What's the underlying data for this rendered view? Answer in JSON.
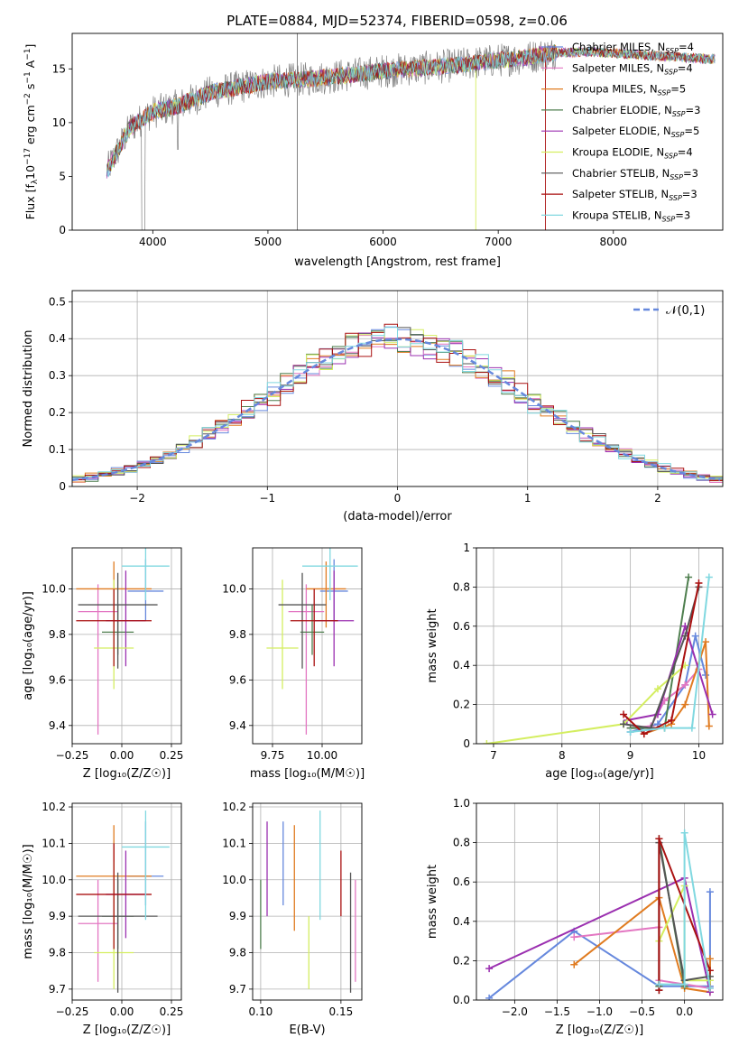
{
  "figure_title": "PLATE=0884, MJD=52374, FIBERID=0598, z=0.06",
  "series": [
    {
      "name": "Chabrier MILES",
      "nssp": "4",
      "color": "#6688dd"
    },
    {
      "name": "Salpeter MILES",
      "nssp": "4",
      "color": "#e377c2"
    },
    {
      "name": "Kroupa MILES",
      "nssp": "5",
      "color": "#e07b20"
    },
    {
      "name": "Chabrier ELODIE",
      "nssp": "3",
      "color": "#4f7f4f"
    },
    {
      "name": "Salpeter ELODIE",
      "nssp": "5",
      "color": "#9b30b0"
    },
    {
      "name": "Kroupa ELODIE",
      "nssp": "4",
      "color": "#d4ee60"
    },
    {
      "name": "Chabrier STELIB",
      "nssp": "3",
      "color": "#555555"
    },
    {
      "name": "Salpeter STELIB",
      "nssp": "3",
      "color": "#aa1111"
    },
    {
      "name": "Kroupa STELIB",
      "nssp": "3",
      "color": "#80d8e0"
    }
  ],
  "chart_data": [
    {
      "id": "spectrum",
      "type": "line",
      "xlabel": "wavelength [Angstrom, rest frame]",
      "ylabel_parts": {
        "pre": "Flux [f",
        "sub": "λ",
        "mid": "10",
        "sup1": "−17",
        "post": " erg cm",
        "sup2": "−2",
        "post2": " s",
        "sup3": "−1",
        "post3": " A",
        "sup4": "−1",
        "close": "]"
      },
      "xlim": [
        3300,
        8950
      ],
      "ylim": [
        0,
        18.3
      ],
      "xticks": [
        4000,
        5000,
        6000,
        7000,
        8000
      ],
      "yticks": [
        0,
        5,
        10,
        15
      ],
      "continuum_x": [
        3600,
        3800,
        4000,
        4200,
        4500,
        5000,
        5500,
        6000,
        6500,
        7000,
        7200,
        7500
      ],
      "continuum_y": [
        5.5,
        9.5,
        11.0,
        11.5,
        12.8,
        13.8,
        14.2,
        14.8,
        15.2,
        15.8,
        16.0,
        16.5
      ],
      "models_x": [
        7500,
        7800,
        8100,
        8400,
        8700,
        8850
      ],
      "models_y": [
        16.5,
        16.6,
        16.4,
        16.2,
        16.0,
        15.9
      ],
      "legend_position": "upper-right"
    },
    {
      "id": "residuals",
      "type": "histogram",
      "xlabel": "(data-model)/error",
      "ylabel": "Normed distribution",
      "xlim": [
        -2.5,
        2.5
      ],
      "ylim": [
        0,
        0.53
      ],
      "xticks": [
        -2,
        -1,
        0,
        1,
        2
      ],
      "yticks": [
        0.0,
        0.1,
        0.2,
        0.3,
        0.4,
        0.5
      ],
      "bin_width": 0.1,
      "reference_label": "𝒩(0,1)",
      "reference_color": "#6688dd",
      "legend_position": "upper-right"
    },
    {
      "id": "age_vs_z",
      "type": "errorbar",
      "xlabel": "Z [log₁₀(Z/Z☉)]",
      "ylabel": "age  [log₁₀(age/yr)]",
      "xlim": [
        -0.25,
        0.3
      ],
      "ylim": [
        9.32,
        10.18
      ],
      "xticks": [
        -0.25,
        0.0,
        0.25
      ],
      "yticks": [
        9.4,
        9.6,
        9.8,
        10.0
      ],
      "points": [
        {
          "s": 0,
          "x": 0.12,
          "y": 9.99,
          "xerr": 0.09,
          "yerr_lo": 0.13,
          "yerr_hi": 0.14
        },
        {
          "s": 1,
          "x": -0.12,
          "y": 9.9,
          "xerr": 0.1,
          "yerr_lo": 0.54,
          "yerr_hi": 0.12
        },
        {
          "s": 2,
          "x": -0.04,
          "y": 10.0,
          "xerr": 0.19,
          "yerr_lo": 0.17,
          "yerr_hi": 0.12
        },
        {
          "s": 3,
          "x": -0.02,
          "y": 9.81,
          "xerr": 0.08,
          "yerr_lo": 0.1,
          "yerr_hi": 0.12
        },
        {
          "s": 4,
          "x": 0.02,
          "y": 9.86,
          "xerr": 0.1,
          "yerr_lo": 0.2,
          "yerr_hi": 0.22
        },
        {
          "s": 5,
          "x": -0.04,
          "y": 9.74,
          "xerr": 0.1,
          "yerr_lo": 0.18,
          "yerr_hi": 0.3
        },
        {
          "s": 6,
          "x": -0.02,
          "y": 9.93,
          "xerr": 0.2,
          "yerr_lo": 0.28,
          "yerr_hi": 0.14
        },
        {
          "s": 7,
          "x": -0.04,
          "y": 9.86,
          "xerr": 0.19,
          "yerr_lo": 0.2,
          "yerr_hi": 0.14
        },
        {
          "s": 8,
          "x": 0.12,
          "y": 10.1,
          "xerr": 0.12,
          "yerr_lo": 0.15,
          "yerr_hi": 0.12
        }
      ]
    },
    {
      "id": "age_vs_mass",
      "type": "errorbar",
      "xlabel": "mass [log₁₀(M/M☉)]",
      "ylabel": "",
      "xlim": [
        9.65,
        10.2
      ],
      "ylim": [
        9.32,
        10.18
      ],
      "xticks": [
        9.75,
        10.0
      ],
      "yticks": [
        9.4,
        9.6,
        9.8,
        10.0
      ],
      "points": [
        {
          "s": 0,
          "x": 10.06,
          "y": 9.99,
          "xerr": 0.07,
          "yerr_lo": 0.13,
          "yerr_hi": 0.14
        },
        {
          "s": 1,
          "x": 9.92,
          "y": 9.9,
          "xerr": 0.09,
          "yerr_lo": 0.54,
          "yerr_hi": 0.12
        },
        {
          "s": 2,
          "x": 10.02,
          "y": 10.0,
          "xerr": 0.1,
          "yerr_lo": 0.17,
          "yerr_hi": 0.12
        },
        {
          "s": 3,
          "x": 9.95,
          "y": 9.81,
          "xerr": 0.06,
          "yerr_lo": 0.1,
          "yerr_hi": 0.12
        },
        {
          "s": 4,
          "x": 10.06,
          "y": 9.86,
          "xerr": 0.1,
          "yerr_lo": 0.2,
          "yerr_hi": 0.22
        },
        {
          "s": 5,
          "x": 9.8,
          "y": 9.74,
          "xerr": 0.08,
          "yerr_lo": 0.18,
          "yerr_hi": 0.3
        },
        {
          "s": 6,
          "x": 9.9,
          "y": 9.93,
          "xerr": 0.12,
          "yerr_lo": 0.28,
          "yerr_hi": 0.14
        },
        {
          "s": 7,
          "x": 9.96,
          "y": 9.86,
          "xerr": 0.12,
          "yerr_lo": 0.2,
          "yerr_hi": 0.14
        },
        {
          "s": 8,
          "x": 10.04,
          "y": 10.1,
          "xerr": 0.14,
          "yerr_lo": 0.15,
          "yerr_hi": 0.12
        }
      ]
    },
    {
      "id": "weight_vs_age",
      "type": "line",
      "xlabel": "age  [log₁₀(age/yr)]",
      "ylabel": "mass weight",
      "xlim": [
        6.75,
        10.35
      ],
      "ylim": [
        0,
        1.0
      ],
      "xticks": [
        7,
        8,
        9,
        10
      ],
      "yticks": [
        0.0,
        0.2,
        0.4,
        0.6,
        0.8,
        1.0
      ],
      "lines": [
        {
          "s": 0,
          "x": [
            9.0,
            9.4,
            9.8,
            9.95,
            10.1
          ],
          "y": [
            0.06,
            0.1,
            0.3,
            0.55,
            0.35
          ]
        },
        {
          "s": 1,
          "x": [
            9.0,
            9.3,
            9.5,
            9.8,
            10.0
          ],
          "y": [
            0.08,
            0.09,
            0.22,
            0.3,
            0.38
          ]
        },
        {
          "s": 2,
          "x": [
            9.2,
            9.6,
            9.8,
            10.1,
            10.15
          ],
          "y": [
            0.05,
            0.1,
            0.2,
            0.52,
            0.09
          ]
        },
        {
          "s": 3,
          "x": [
            9.0,
            9.5,
            9.85
          ],
          "y": [
            0.08,
            0.08,
            0.85
          ]
        },
        {
          "s": 4,
          "x": [
            8.95,
            9.4,
            9.8,
            10.2
          ],
          "y": [
            0.12,
            0.15,
            0.6,
            0.15
          ]
        },
        {
          "s": 5,
          "x": [
            6.9,
            8.9,
            9.4,
            9.8
          ],
          "y": [
            0.0,
            0.1,
            0.28,
            0.4
          ]
        },
        {
          "s": 6,
          "x": [
            8.9,
            9.3,
            9.8,
            10.0
          ],
          "y": [
            0.1,
            0.08,
            0.55,
            0.8
          ]
        },
        {
          "s": 7,
          "x": [
            8.9,
            9.2,
            9.6,
            10.0
          ],
          "y": [
            0.15,
            0.05,
            0.12,
            0.82
          ]
        },
        {
          "s": 8,
          "x": [
            9.0,
            9.5,
            9.9,
            10.15
          ],
          "y": [
            0.06,
            0.08,
            0.08,
            0.85
          ]
        }
      ]
    },
    {
      "id": "mass_vs_z",
      "type": "errorbar",
      "xlabel": "Z [log₁₀(Z/Z☉)]",
      "ylabel": "mass [log₁₀(M/M☉)]",
      "xlim": [
        -0.25,
        0.3
      ],
      "ylim": [
        9.67,
        10.21
      ],
      "xticks": [
        -0.25,
        0.0,
        0.25
      ],
      "yticks": [
        9.7,
        9.8,
        9.9,
        10.0,
        10.1,
        10.2
      ],
      "points": [
        {
          "s": 0,
          "x": 0.12,
          "y": 10.01,
          "xerr": 0.09,
          "yerr_lo": 0.08,
          "yerr_hi": 0.15
        },
        {
          "s": 1,
          "x": -0.12,
          "y": 9.88,
          "xerr": 0.1,
          "yerr_lo": 0.16,
          "yerr_hi": 0.12
        },
        {
          "s": 2,
          "x": -0.04,
          "y": 10.01,
          "xerr": 0.19,
          "yerr_lo": 0.15,
          "yerr_hi": 0.14
        },
        {
          "s": 3,
          "x": -0.02,
          "y": 9.9,
          "xerr": 0.08,
          "yerr_lo": 0.09,
          "yerr_hi": 0.1
        },
        {
          "s": 4,
          "x": 0.02,
          "y": 9.96,
          "xerr": 0.1,
          "yerr_lo": 0.12,
          "yerr_hi": 0.12
        },
        {
          "s": 5,
          "x": -0.04,
          "y": 9.8,
          "xerr": 0.1,
          "yerr_lo": 0.1,
          "yerr_hi": 0.25
        },
        {
          "s": 6,
          "x": -0.02,
          "y": 9.9,
          "xerr": 0.2,
          "yerr_lo": 0.21,
          "yerr_hi": 0.12
        },
        {
          "s": 7,
          "x": -0.04,
          "y": 9.96,
          "xerr": 0.19,
          "yerr_lo": 0.15,
          "yerr_hi": 0.14
        },
        {
          "s": 8,
          "x": 0.12,
          "y": 10.09,
          "xerr": 0.12,
          "yerr_lo": 0.2,
          "yerr_hi": 0.1
        }
      ]
    },
    {
      "id": "mass_vs_ebv",
      "type": "errorbar",
      "xlabel": "E(B-V)",
      "ylabel": "",
      "xlim": [
        0.095,
        0.163
      ],
      "ylim": [
        9.67,
        10.21
      ],
      "xticks": [
        0.1,
        0.15
      ],
      "yticks": [
        9.7,
        9.8,
        9.9,
        10.0,
        10.1,
        10.2
      ],
      "points": [
        {
          "s": 0,
          "x": 0.114,
          "y": 10.01,
          "xerr": 0,
          "yerr_lo": 0.08,
          "yerr_hi": 0.15
        },
        {
          "s": 1,
          "x": 0.159,
          "y": 9.88,
          "xerr": 0,
          "yerr_lo": 0.16,
          "yerr_hi": 0.12
        },
        {
          "s": 2,
          "x": 0.121,
          "y": 10.01,
          "xerr": 0,
          "yerr_lo": 0.15,
          "yerr_hi": 0.14
        },
        {
          "s": 3,
          "x": 0.1,
          "y": 9.9,
          "xerr": 0,
          "yerr_lo": 0.09,
          "yerr_hi": 0.1
        },
        {
          "s": 4,
          "x": 0.104,
          "y": 10.02,
          "xerr": 0,
          "yerr_lo": 0.12,
          "yerr_hi": 0.14
        },
        {
          "s": 5,
          "x": 0.13,
          "y": 9.8,
          "xerr": 0,
          "yerr_lo": 0.1,
          "yerr_hi": 0.1
        },
        {
          "s": 6,
          "x": 0.156,
          "y": 9.86,
          "xerr": 0,
          "yerr_lo": 0.17,
          "yerr_hi": 0.16
        },
        {
          "s": 7,
          "x": 0.15,
          "y": 9.98,
          "xerr": 0,
          "yerr_lo": 0.08,
          "yerr_hi": 0.1
        },
        {
          "s": 8,
          "x": 0.137,
          "y": 10.04,
          "xerr": 0,
          "yerr_lo": 0.15,
          "yerr_hi": 0.15
        }
      ]
    },
    {
      "id": "weight_vs_z",
      "type": "line",
      "xlabel": "Z [log₁₀(Z/Z☉)]",
      "ylabel": "mass weight",
      "xlim": [
        -2.45,
        0.45
      ],
      "ylim": [
        0,
        1.0
      ],
      "xticks": [
        -2.0,
        -1.5,
        -1.0,
        -0.5,
        0.0
      ],
      "yticks": [
        0.0,
        0.2,
        0.4,
        0.6,
        0.8,
        1.0
      ],
      "lines": [
        {
          "s": 0,
          "x": [
            -2.3,
            -1.3,
            -0.3,
            0.3,
            0.3
          ],
          "y": [
            0.01,
            0.35,
            0.07,
            0.07,
            0.55
          ]
        },
        {
          "s": 1,
          "x": [
            -1.3,
            -0.3,
            -0.3,
            0.3
          ],
          "y": [
            0.32,
            0.37,
            0.1,
            0.06
          ]
        },
        {
          "s": 2,
          "x": [
            -1.3,
            -0.3,
            0.0,
            0.3,
            0.3
          ],
          "y": [
            0.18,
            0.52,
            0.06,
            0.04,
            0.21
          ]
        },
        {
          "s": 3,
          "x": [
            -0.3,
            -0.3,
            0.0
          ],
          "y": [
            0.07,
            0.82,
            0.07
          ]
        },
        {
          "s": 4,
          "x": [
            -2.3,
            0.0,
            0.3
          ],
          "y": [
            0.16,
            0.62,
            0.04
          ]
        },
        {
          "s": 5,
          "x": [
            -0.3,
            0.0,
            0.0,
            0.3
          ],
          "y": [
            0.3,
            0.58,
            0.1,
            0.1
          ]
        },
        {
          "s": 6,
          "x": [
            -0.3,
            -0.3,
            0.0,
            0.3
          ],
          "y": [
            0.05,
            0.8,
            0.1,
            0.12
          ]
        },
        {
          "s": 7,
          "x": [
            -0.3,
            -0.3,
            0.3
          ],
          "y": [
            0.05,
            0.82,
            0.15
          ]
        },
        {
          "s": 8,
          "x": [
            -0.3,
            0.0,
            0.0,
            0.3
          ],
          "y": [
            0.08,
            0.08,
            0.85,
            0.06
          ]
        }
      ]
    }
  ]
}
